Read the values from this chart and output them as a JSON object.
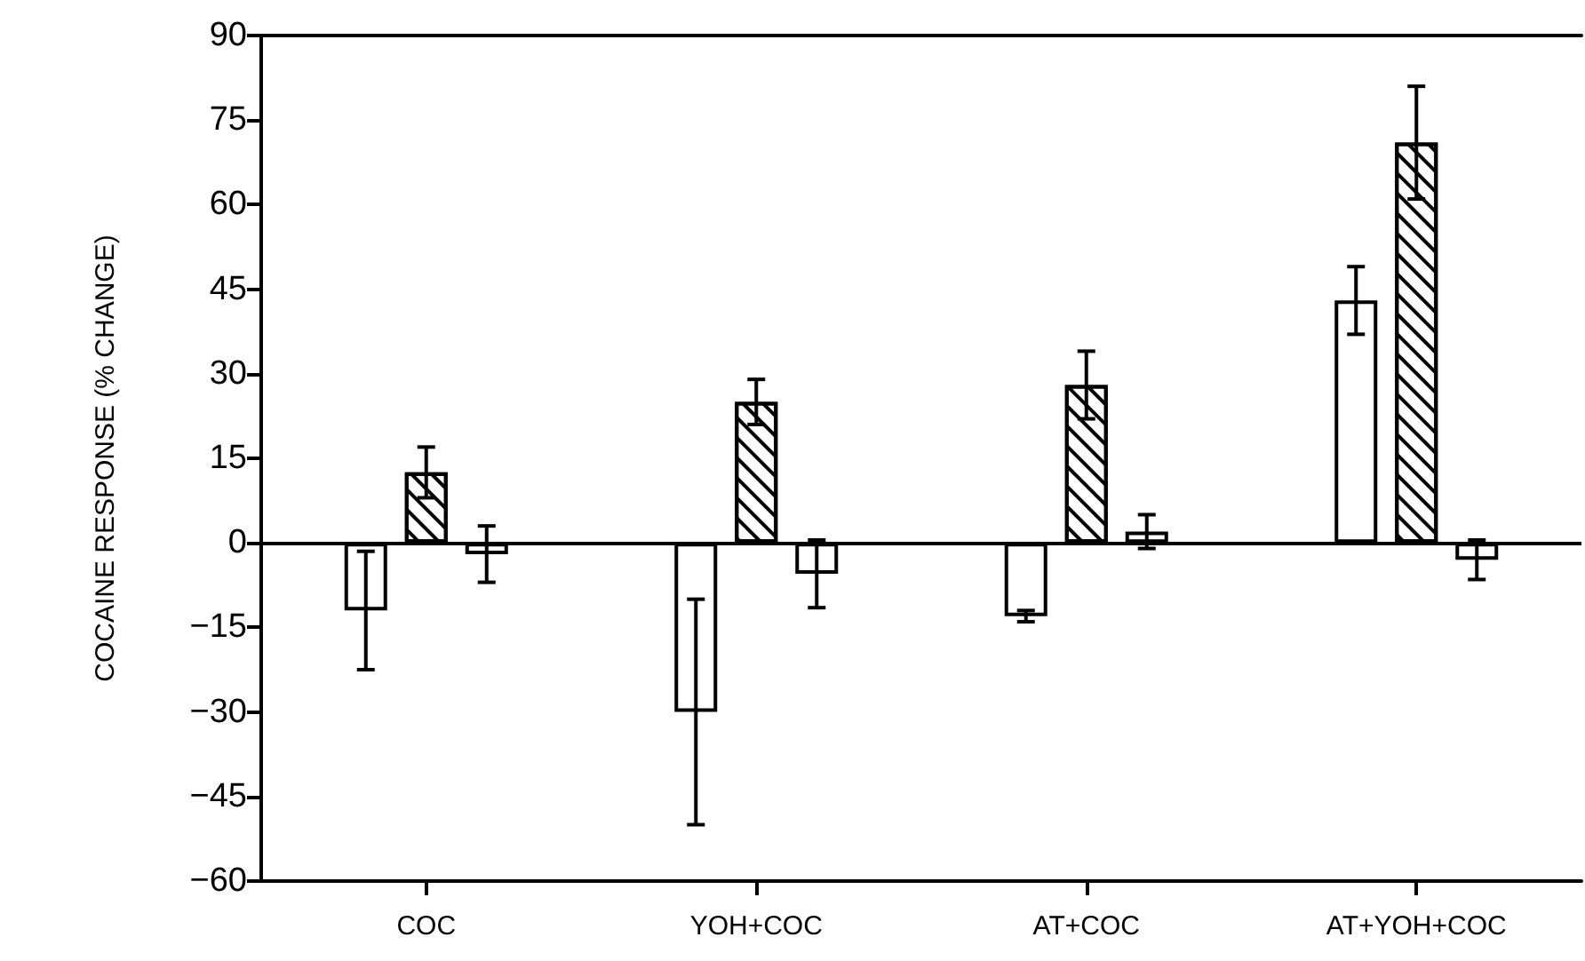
{
  "chart_data": {
    "type": "bar",
    "ylabel": "COCAINE RESPONSE (% CHANGE)",
    "categories": [
      "COC",
      "YOH+COC",
      "AT+COC",
      "AT+YOH+COC"
    ],
    "series": [
      {
        "color": "#ffffff",
        "values": [
          -12,
          -30,
          -13,
          43
        ],
        "errors": [
          10.5,
          20,
          1,
          6
        ]
      },
      {
        "color": "#ffffff",
        "values": [
          12.5,
          25,
          28,
          71
        ],
        "errors": [
          4.5,
          4,
          6,
          10
        ]
      },
      {
        "color": "#ffffff",
        "values": [
          -2,
          -5.5,
          2,
          -3
        ],
        "errors": [
          5,
          6,
          3,
          3.5
        ]
      }
    ],
    "ylim": [
      -60,
      90
    ],
    "yticks": [
      -60,
      -45,
      -30,
      -15,
      0,
      15,
      30,
      45,
      60,
      75,
      90
    ],
    "grid": false,
    "ref_lines": [
      {
        "axis": "y",
        "value": 0,
        "label": null
      }
    ]
  }
}
